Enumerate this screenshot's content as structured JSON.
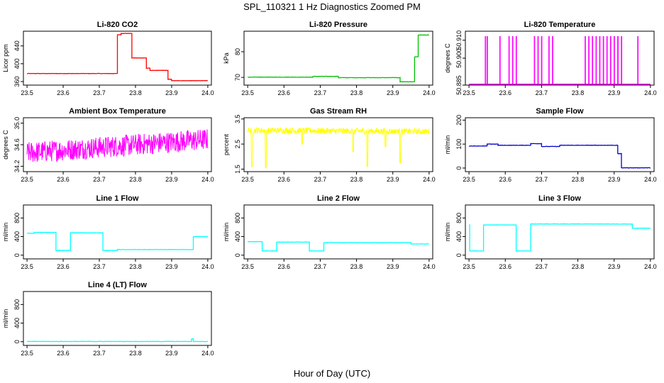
{
  "figure": {
    "title": "SPL_110321  1 Hz Diagnostics Zoomed PM",
    "xlabel": "Hour of Day (UTC)"
  },
  "chart_data": [
    {
      "type": "line",
      "title": "Li-820 CO2",
      "ylabel": "Licor ppm",
      "color": "#ff0000",
      "xlim": [
        23.49,
        24.01
      ],
      "ylim": [
        352,
        473
      ],
      "xticks": [
        "23.5",
        "23.6",
        "23.7",
        "23.8",
        "23.9",
        "24.0"
      ],
      "yticks": [
        "360",
        "400",
        "440"
      ],
      "segments": [
        [
          23.5,
          23.75,
          378
        ],
        [
          23.75,
          23.76,
          465
        ],
        [
          23.76,
          23.79,
          468
        ],
        [
          23.79,
          23.83,
          413
        ],
        [
          23.83,
          23.84,
          390
        ],
        [
          23.84,
          23.89,
          385
        ],
        [
          23.89,
          23.9,
          365
        ],
        [
          23.9,
          24.0,
          362
        ]
      ]
    },
    {
      "type": "line",
      "title": "Li-820 Pressure",
      "ylabel": "kPa",
      "color": "#00c000",
      "xlim": [
        23.49,
        24.01
      ],
      "ylim": [
        67,
        88
      ],
      "xticks": [
        "23.5",
        "23.6",
        "23.7",
        "23.8",
        "23.9",
        "24.0"
      ],
      "yticks": [
        "70",
        "80"
      ],
      "segments": [
        [
          23.5,
          23.68,
          70.1
        ],
        [
          23.68,
          23.75,
          70.4
        ],
        [
          23.75,
          23.92,
          69.9
        ],
        [
          23.92,
          23.96,
          68.3
        ],
        [
          23.96,
          23.97,
          78.0
        ],
        [
          23.97,
          24.0,
          86.5
        ]
      ]
    },
    {
      "type": "line",
      "title": "Li-820 Temperature",
      "ylabel": "degrees C",
      "color": "#ff00ff",
      "xlim": [
        23.49,
        24.01
      ],
      "ylim": [
        50.885,
        50.915
      ],
      "xticks": [
        "23.5",
        "23.6",
        "23.7",
        "23.8",
        "23.9",
        "24.0"
      ],
      "yticks": [
        "50.885",
        "50.900",
        "50.910"
      ],
      "baseline": 50.8855,
      "spike_top": 50.912,
      "spikes": [
        23.545,
        23.55,
        23.585,
        23.61,
        23.62,
        23.63,
        23.68,
        23.69,
        23.7,
        23.72,
        23.73,
        23.82,
        23.83,
        23.84,
        23.85,
        23.86,
        23.87,
        23.88,
        23.89,
        23.9,
        23.91,
        23.92,
        23.965
      ]
    },
    {
      "type": "line",
      "title": "Ambient Box Temperature",
      "ylabel": "degrees C",
      "color": "#ff00ff",
      "xlim": [
        23.49,
        24.01
      ],
      "ylim": [
        34.1,
        35.1
      ],
      "xticks": [
        "23.5",
        "23.6",
        "23.7",
        "23.8",
        "23.9",
        "24.0"
      ],
      "yticks": [
        "34.2",
        "34.6",
        "35.0"
      ],
      "noise": {
        "start": 34.45,
        "end": 34.7,
        "amp": 0.2
      }
    },
    {
      "type": "line",
      "title": "Gas Stream RH",
      "ylabel": "percent",
      "color": "#ffff00",
      "xlim": [
        23.49,
        24.01
      ],
      "ylim": [
        1.4,
        3.55
      ],
      "xticks": [
        "23.5",
        "23.6",
        "23.7",
        "23.8",
        "23.9",
        "24.0"
      ],
      "yticks": [
        "1.5",
        "2.5",
        "3.5"
      ],
      "noise": {
        "start": 3.05,
        "end": 3.0,
        "amp": 0.12
      },
      "dips": [
        [
          23.512,
          1.6
        ],
        [
          23.55,
          1.55
        ],
        [
          23.65,
          2.5
        ],
        [
          23.79,
          2.2
        ],
        [
          23.83,
          1.6
        ],
        [
          23.88,
          2.4
        ],
        [
          23.92,
          1.75
        ]
      ]
    },
    {
      "type": "line",
      "title": "Sample Flow",
      "ylabel": "ml/min",
      "color": "#0000cc",
      "xlim": [
        23.49,
        24.01
      ],
      "ylim": [
        -15,
        210
      ],
      "xticks": [
        "23.5",
        "23.6",
        "23.7",
        "23.8",
        "23.9",
        "24.0"
      ],
      "yticks": [
        "0",
        "100",
        "200"
      ],
      "segments": [
        [
          23.5,
          23.55,
          92
        ],
        [
          23.55,
          23.58,
          100
        ],
        [
          23.58,
          23.67,
          95
        ],
        [
          23.67,
          23.7,
          102
        ],
        [
          23.7,
          23.75,
          90
        ],
        [
          23.75,
          23.91,
          95
        ],
        [
          23.91,
          23.92,
          60
        ],
        [
          23.92,
          24.0,
          1
        ]
      ]
    },
    {
      "type": "line",
      "title": "Line 1 Flow",
      "ylabel": "ml/min",
      "color": "#00ffff",
      "xlim": [
        23.49,
        24.01
      ],
      "ylim": [
        -80,
        1080
      ],
      "xticks": [
        "23.5",
        "23.6",
        "23.7",
        "23.8",
        "23.9",
        "24.0"
      ],
      "yticks": [
        "0",
        "400",
        "800"
      ],
      "segments": [
        [
          23.5,
          23.52,
          470
        ],
        [
          23.52,
          23.58,
          490
        ],
        [
          23.58,
          23.62,
          100
        ],
        [
          23.62,
          23.71,
          480
        ],
        [
          23.71,
          23.75,
          100
        ],
        [
          23.75,
          23.96,
          120
        ],
        [
          23.96,
          24.0,
          400
        ]
      ]
    },
    {
      "type": "line",
      "title": "Line 2 Flow",
      "ylabel": "ml/min",
      "color": "#00ffff",
      "xlim": [
        23.49,
        24.01
      ],
      "ylim": [
        -80,
        1080
      ],
      "xticks": [
        "23.5",
        "23.6",
        "23.7",
        "23.8",
        "23.9",
        "24.0"
      ],
      "yticks": [
        "0",
        "400",
        "800"
      ],
      "segments": [
        [
          23.5,
          23.54,
          290
        ],
        [
          23.54,
          23.58,
          90
        ],
        [
          23.58,
          23.67,
          280
        ],
        [
          23.67,
          23.71,
          90
        ],
        [
          23.71,
          23.95,
          270
        ],
        [
          23.95,
          24.0,
          240
        ]
      ]
    },
    {
      "type": "line",
      "title": "Line 3 Flow",
      "ylabel": "ml/min",
      "color": "#00ffff",
      "xlim": [
        23.49,
        24.01
      ],
      "ylim": [
        -80,
        1080
      ],
      "xticks": [
        "23.5",
        "23.6",
        "23.7",
        "23.8",
        "23.9",
        "24.0"
      ],
      "yticks": [
        "0",
        "400",
        "800"
      ],
      "segments": [
        [
          23.5,
          23.502,
          650
        ],
        [
          23.502,
          23.54,
          90
        ],
        [
          23.54,
          23.63,
          650
        ],
        [
          23.63,
          23.67,
          90
        ],
        [
          23.67,
          23.95,
          670
        ],
        [
          23.95,
          24.0,
          580
        ]
      ]
    },
    {
      "type": "line",
      "title": "Line 4 (LT) Flow",
      "ylabel": "ml/min",
      "color": "#00ffff",
      "xlim": [
        23.49,
        24.01
      ],
      "ylim": [
        -80,
        1080
      ],
      "xticks": [
        "23.5",
        "23.6",
        "23.7",
        "23.8",
        "23.9",
        "24.0"
      ],
      "yticks": [
        "0",
        "400",
        "800"
      ],
      "segments": [
        [
          23.5,
          23.955,
          5
        ],
        [
          23.955,
          23.96,
          60
        ],
        [
          23.96,
          24.0,
          5
        ]
      ]
    }
  ]
}
